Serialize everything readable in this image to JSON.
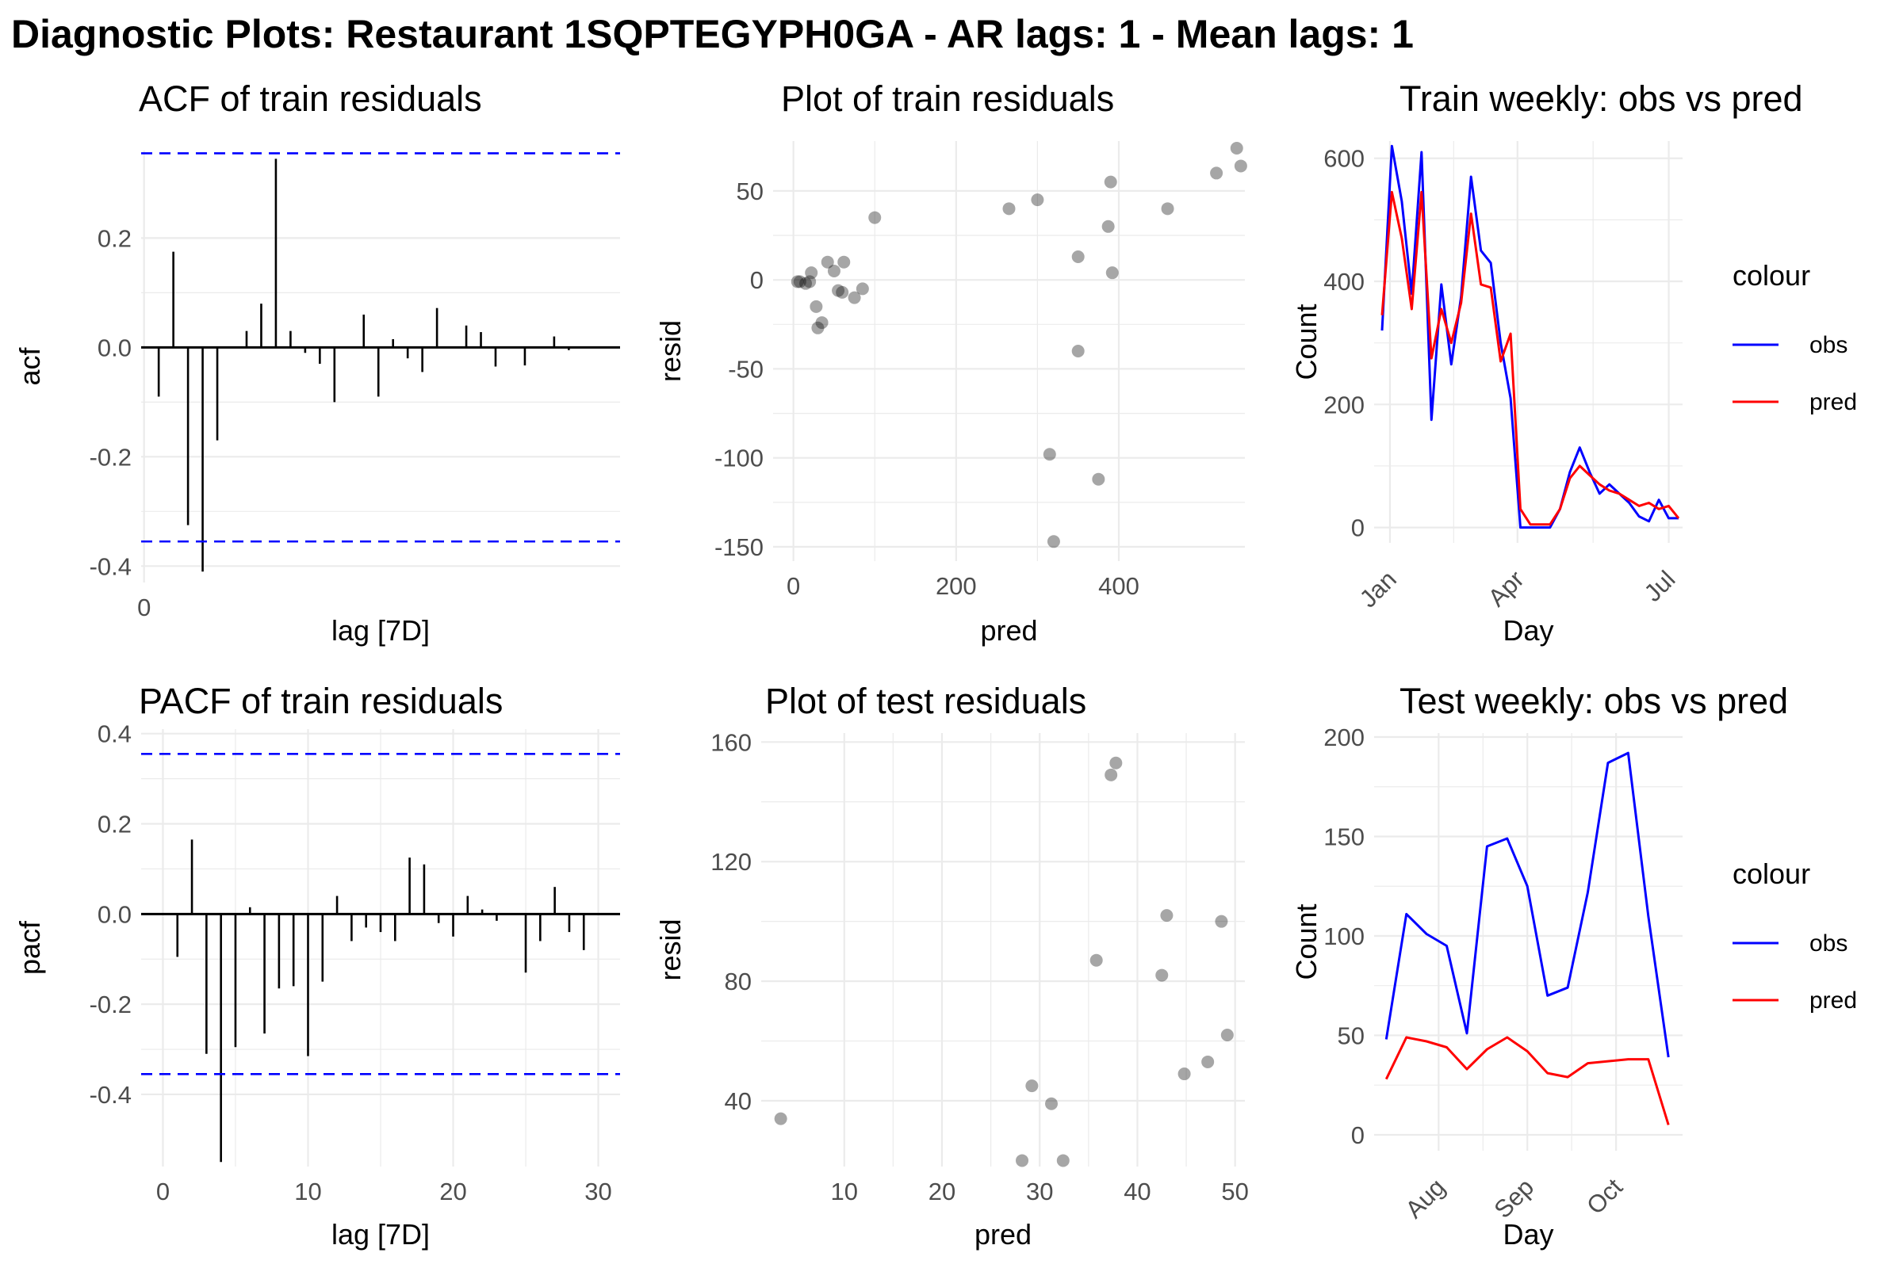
{
  "figure": {
    "title": "Diagnostic Plots: Restaurant 1SQPTEGYPH0GA - AR lags: 1 - Mean lags: 1"
  },
  "chart_data": [
    {
      "id": "acf",
      "type": "bar",
      "title": "ACF of train residuals",
      "xlabel": "lag [7D]",
      "ylabel": "acf",
      "xlim": [
        -0.2,
        32.5
      ],
      "ylim": [
        -0.43,
        0.36
      ],
      "xticks": [
        0
      ],
      "yticks": [
        -0.4,
        -0.2,
        0.0,
        0.2
      ],
      "ytick_labels": [
        "-0.4",
        "-0.2",
        "0.0",
        "0.2"
      ],
      "confidence_bounds": [
        0.355,
        -0.355
      ],
      "lags": [
        1,
        2,
        3,
        4,
        5,
        6,
        7,
        8,
        9,
        10,
        11,
        12,
        13,
        14,
        15,
        16,
        17,
        18,
        19,
        20,
        21,
        22,
        23,
        24,
        25,
        26,
        27,
        28,
        29,
        30
      ],
      "values": [
        -0.09,
        0.175,
        -0.325,
        -0.41,
        -0.17,
        0.0,
        0.03,
        0.08,
        0.345,
        0.03,
        -0.01,
        -0.03,
        -0.1,
        0.0,
        0.06,
        -0.09,
        0.015,
        -0.02,
        -0.045,
        0.072,
        0.0,
        0.04,
        0.028,
        -0.035,
        0.0,
        -0.033,
        0.0,
        0.02,
        -0.005,
        0.0
      ]
    },
    {
      "id": "train-resid",
      "type": "scatter",
      "title": "Plot of train residuals",
      "xlabel": "pred",
      "ylabel": "resid",
      "xlim": [
        -25,
        555
      ],
      "ylim": [
        -158,
        78
      ],
      "xticks": [
        0,
        200,
        400
      ],
      "yticks": [
        -150,
        -100,
        -50,
        0,
        50
      ],
      "x": [
        5,
        8,
        15,
        20,
        22,
        28,
        30,
        35,
        42,
        50,
        55,
        60,
        62,
        75,
        85,
        100,
        265,
        300,
        315,
        320,
        350,
        350,
        375,
        387,
        390,
        392,
        460,
        520,
        545,
        550
      ],
      "y": [
        -1,
        -1,
        -2,
        -1,
        4,
        -15,
        -27,
        -24,
        10,
        5,
        -6,
        -7,
        10,
        -10,
        -5,
        35,
        40,
        45,
        -98,
        -147,
        13,
        -40,
        -112,
        30,
        55,
        4,
        40,
        60,
        74,
        64
      ]
    },
    {
      "id": "train-weekly",
      "type": "line",
      "title": "Train weekly: obs vs pred",
      "xlabel": "Day",
      "ylabel": "Count",
      "xlim": [
        -0.8,
        30.4
      ],
      "ylim": [
        -25,
        628
      ],
      "xtick_positions": [
        0.8,
        13.7,
        29.0
      ],
      "xtick_labels": [
        "Jan",
        "Apr",
        "Jul"
      ],
      "yticks": [
        0,
        200,
        400,
        600
      ],
      "legend": {
        "title": "colour",
        "entries": [
          "obs",
          "pred"
        ],
        "position": "right"
      },
      "series": [
        {
          "name": "obs",
          "color": "#0000ff",
          "x": [
            0,
            1,
            2,
            3,
            4,
            5,
            6,
            7,
            8,
            9,
            10,
            11,
            12,
            13,
            14,
            15,
            16,
            17,
            18,
            19,
            20,
            21,
            22,
            23,
            24,
            25,
            26,
            27,
            28,
            29,
            30
          ],
          "values": [
            320,
            620,
            530,
            380,
            610,
            175,
            395,
            265,
            375,
            570,
            450,
            430,
            300,
            210,
            0,
            0,
            0,
            0,
            30,
            90,
            130,
            90,
            55,
            70,
            55,
            40,
            18,
            10,
            45,
            15,
            15
          ]
        },
        {
          "name": "pred",
          "color": "#ff0000",
          "x": [
            0,
            1,
            2,
            3,
            4,
            5,
            6,
            7,
            8,
            9,
            10,
            11,
            12,
            13,
            14,
            15,
            16,
            17,
            18,
            19,
            20,
            21,
            22,
            23,
            24,
            25,
            26,
            27,
            28,
            29,
            30
          ],
          "values": [
            345,
            545,
            470,
            355,
            545,
            275,
            355,
            300,
            365,
            510,
            395,
            390,
            270,
            315,
            30,
            5,
            5,
            5,
            30,
            80,
            100,
            85,
            70,
            60,
            55,
            45,
            35,
            40,
            30,
            35,
            15
          ]
        }
      ]
    },
    {
      "id": "pacf",
      "type": "bar",
      "title": "PACF of train residuals",
      "xlabel": "lag [7D]",
      "ylabel": "pacf",
      "xlim": [
        -1.5,
        31.5
      ],
      "ylim": [
        -0.56,
        0.41
      ],
      "xticks": [
        0,
        10,
        20,
        30
      ],
      "yticks": [
        -0.4,
        -0.2,
        0.0,
        0.2,
        0.4
      ],
      "ytick_labels": [
        "-0.4",
        "-0.2",
        "0.0",
        "0.2",
        "0.4"
      ],
      "confidence_bounds": [
        0.355,
        -0.355
      ],
      "lags": [
        1,
        2,
        3,
        4,
        5,
        6,
        7,
        8,
        9,
        10,
        11,
        12,
        13,
        14,
        15,
        16,
        17,
        18,
        19,
        20,
        21,
        22,
        23,
        24,
        25,
        26,
        27,
        28,
        29
      ],
      "values": [
        -0.095,
        0.165,
        -0.31,
        -0.55,
        -0.295,
        0.015,
        -0.265,
        -0.165,
        -0.16,
        -0.315,
        -0.15,
        0.04,
        -0.06,
        -0.03,
        -0.04,
        -0.06,
        0.125,
        0.11,
        -0.02,
        -0.05,
        0.04,
        0.01,
        -0.015,
        0.0,
        -0.13,
        -0.06,
        0.06,
        -0.04,
        -0.08
      ]
    },
    {
      "id": "test-resid",
      "type": "scatter",
      "title": "Plot of test residuals",
      "xlabel": "pred",
      "ylabel": "resid",
      "xlim": [
        1.5,
        51.0
      ],
      "ylim": [
        18,
        163
      ],
      "xticks": [
        10,
        20,
        30,
        40,
        50
      ],
      "yticks": [
        40,
        80,
        120,
        160
      ],
      "x": [
        3.5,
        28.2,
        29.2,
        31.2,
        32.4,
        35.8,
        37.3,
        37.8,
        42.5,
        43.0,
        44.8,
        47.2,
        48.6,
        49.2
      ],
      "y": [
        34,
        20,
        45,
        39,
        20,
        87,
        149,
        153,
        82,
        102,
        49,
        53,
        100,
        62
      ]
    },
    {
      "id": "test-weekly",
      "type": "line",
      "title": "Test weekly: obs vs pred",
      "xlabel": "Day",
      "ylabel": "Count",
      "xlim": [
        -0.6,
        14.7
      ],
      "ylim": [
        -8,
        202
      ],
      "xtick_positions": [
        2.6,
        7.0,
        11.4
      ],
      "xtick_labels": [
        "Aug",
        "Sep",
        "Oct"
      ],
      "yticks": [
        0,
        50,
        100,
        150,
        200
      ],
      "legend": {
        "title": "colour",
        "entries": [
          "obs",
          "pred"
        ],
        "position": "right"
      },
      "series": [
        {
          "name": "obs",
          "color": "#0000ff",
          "x": [
            0,
            1,
            2,
            3,
            4,
            5,
            6,
            7,
            8,
            9,
            10,
            11,
            12,
            13,
            14
          ],
          "values": [
            48,
            111,
            101,
            95,
            51,
            145,
            149,
            125,
            70,
            74,
            122,
            187,
            192,
            110,
            39
          ]
        },
        {
          "name": "pred",
          "color": "#ff0000",
          "x": [
            0,
            1,
            2,
            3,
            4,
            5,
            6,
            7,
            8,
            9,
            10,
            11,
            12,
            13,
            14
          ],
          "values": [
            28,
            49,
            47,
            44,
            33,
            43,
            49,
            42,
            31,
            29,
            36,
            37,
            38,
            38,
            5
          ]
        }
      ]
    }
  ]
}
